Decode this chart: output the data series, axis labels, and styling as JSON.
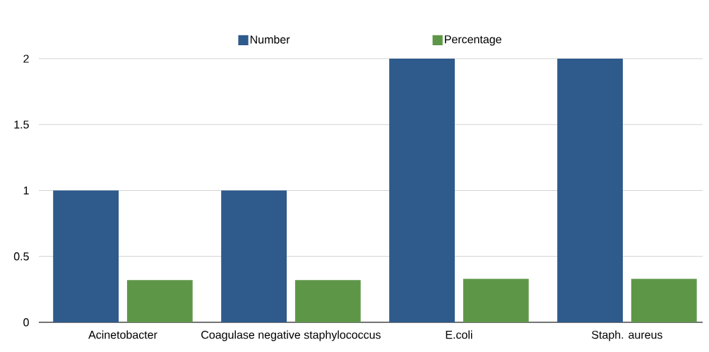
{
  "chart_data": {
    "type": "bar",
    "categories": [
      "Acinetobacter",
      "Coagulase negative staphylococcus",
      "E.coli",
      "Staph. aureus"
    ],
    "series": [
      {
        "name": "Number",
        "color": "#2e5a8c",
        "values": [
          1,
          1,
          2,
          2
        ]
      },
      {
        "name": "Percentage",
        "color": "#5e9648",
        "values": [
          0.32,
          0.32,
          0.33,
          0.33
        ]
      }
    ],
    "ylim": [
      0,
      2
    ],
    "yticks": [
      0,
      0.5,
      1,
      1.5,
      2
    ],
    "grid": "y",
    "legend": "top"
  }
}
